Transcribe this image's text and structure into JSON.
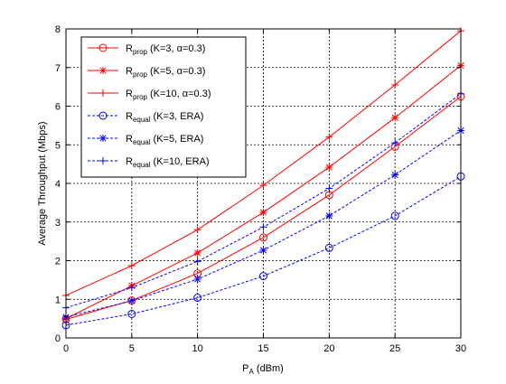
{
  "chart_data": {
    "type": "line",
    "xlabel": {
      "main": "P",
      "sub": "A",
      "rest": " (dBm)"
    },
    "ylabel": "Average Throughput (Mbps)",
    "xlim": [
      0,
      30
    ],
    "ylim": [
      0,
      8
    ],
    "x_ticks": [
      "0",
      "5",
      "10",
      "15",
      "20",
      "25",
      "30"
    ],
    "y_ticks": [
      "0",
      "1",
      "2",
      "3",
      "4",
      "5",
      "6",
      "7",
      "8"
    ],
    "grid": true,
    "legend_position": "top-left",
    "x": [
      0,
      5,
      10,
      15,
      20,
      25,
      30
    ],
    "series": [
      {
        "main": "R",
        "sub": "prop",
        "params": "(K=3, α=0.3)",
        "color": "#ff0000",
        "line": "solid",
        "marker": "circle",
        "values": [
          0.48,
          0.97,
          1.67,
          2.6,
          3.7,
          4.95,
          6.25
        ]
      },
      {
        "main": "R",
        "sub": "prop",
        "params": "(K=5, α=0.3)",
        "color": "#ff0000",
        "line": "solid",
        "marker": "asterisk",
        "values": [
          0.5,
          1.35,
          2.2,
          3.25,
          4.42,
          5.7,
          7.05
        ]
      },
      {
        "main": "R",
        "sub": "prop",
        "params": "(K=10, α=0.3)",
        "color": "#ff0000",
        "line": "solid",
        "marker": "plus",
        "values": [
          1.1,
          1.87,
          2.8,
          3.95,
          5.2,
          6.55,
          7.95
        ]
      },
      {
        "main": "R",
        "sub": "equal",
        "params": "(K=3, ERA)",
        "color": "#0000ff",
        "line": "dashed",
        "marker": "circle",
        "values": [
          0.33,
          0.62,
          1.04,
          1.6,
          2.33,
          3.16,
          4.18
        ]
      },
      {
        "main": "R",
        "sub": "equal",
        "params": "(K=5, ERA)",
        "color": "#0000ff",
        "line": "dashed",
        "marker": "asterisk",
        "values": [
          0.54,
          0.96,
          1.52,
          2.27,
          3.16,
          4.22,
          5.37
        ]
      },
      {
        "main": "R",
        "sub": "equal",
        "params": "(K=10, ERA)",
        "color": "#0000ff",
        "line": "dashed",
        "marker": "plus",
        "values": [
          0.78,
          1.3,
          1.98,
          2.87,
          3.87,
          5.05,
          6.32
        ]
      }
    ]
  }
}
